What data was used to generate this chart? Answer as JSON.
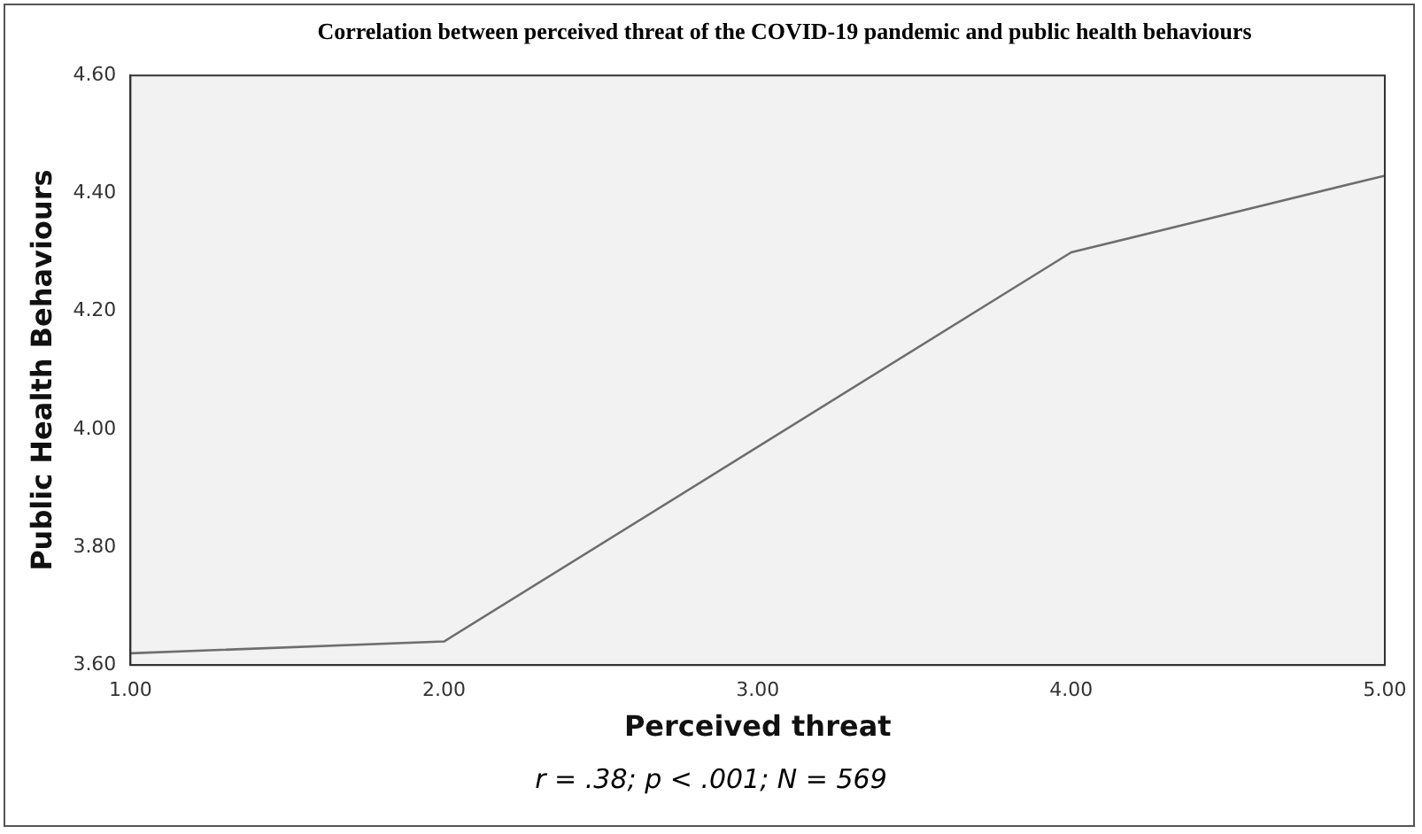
{
  "chart_data": {
    "type": "line",
    "title": "Correlation between perceived threat of the COVID-19 pandemic and public health behaviours",
    "xlabel": "Perceived threat",
    "ylabel": "Public Health Behaviours",
    "annotations": [
      "r = .38; p < .001; N = 569"
    ],
    "x": [
      1,
      2,
      4,
      5
    ],
    "series": [
      {
        "color": "#6e6e6e",
        "values": [
          3.62,
          3.64,
          4.3,
          4.43
        ]
      }
    ],
    "xlim": [
      1,
      5
    ],
    "xticks": [
      {
        "value": 1,
        "label": "1.00"
      },
      {
        "value": 2,
        "label": "2.00"
      },
      {
        "value": 3,
        "label": "3.00"
      },
      {
        "value": 4,
        "label": "4.00"
      },
      {
        "value": 5,
        "label": "5.00"
      }
    ],
    "ylim": [
      3.6,
      4.6
    ],
    "yticks": [
      {
        "value": 3.6,
        "label": "3.60"
      },
      {
        "value": 3.8,
        "label": "3.80"
      },
      {
        "value": 4,
        "label": "4.00"
      },
      {
        "value": 4.2,
        "label": "4.20"
      },
      {
        "value": 4.4,
        "label": "4.40"
      },
      {
        "value": 4.6,
        "label": "4.60"
      }
    ],
    "grid": false,
    "legend": false,
    "marker": "none",
    "line_style": "solid"
  }
}
